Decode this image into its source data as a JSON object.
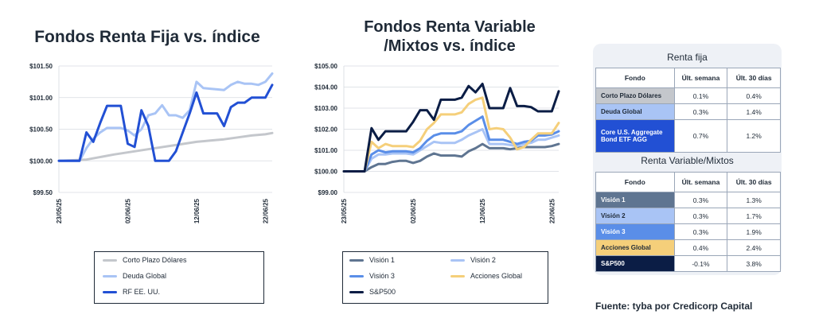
{
  "titles": {
    "left": "Fondos Renta Fija vs. índice",
    "right_line1": "Fondos Renta Variable",
    "right_line2": "/Mixtos vs. índice"
  },
  "colors": {
    "corto_plazo": "#c4c7cc",
    "deuda_global": "#a9c4f5",
    "rf_eeuu": "#2250d4",
    "vision1": "#5f7591",
    "vision2": "#a9c4f5",
    "vision3": "#5a8ee8",
    "acciones_global": "#f5cf7a",
    "sp500": "#0b1d45"
  },
  "chart_data": [
    {
      "type": "line",
      "title": "Fondos Renta Fija vs. índice",
      "ylim": [
        99.5,
        101.5
      ],
      "yticks": [
        "$99.50",
        "$100.00",
        "$100.50",
        "$101.00",
        "$101.50"
      ],
      "xticks": [
        "23/05/25",
        "02/06/25",
        "12/06/25",
        "22/06/25"
      ],
      "x_range": [
        0,
        30
      ],
      "xtick_positions": [
        0,
        10,
        20,
        30
      ],
      "series": [
        {
          "name": "Corto Plazo Dólares",
          "color_key": "corto_plazo",
          "x": [
            0,
            4,
            8,
            11,
            14,
            17,
            20,
            22,
            24,
            26,
            28,
            30,
            31
          ],
          "values": [
            100.0,
            100.02,
            100.1,
            100.15,
            100.2,
            100.25,
            100.3,
            100.32,
            100.34,
            100.37,
            100.4,
            100.42,
            100.44
          ]
        },
        {
          "name": "Deuda Global",
          "color_key": "deuda_global",
          "x": [
            0,
            3,
            4,
            5,
            6,
            7,
            8,
            9,
            10,
            11,
            12,
            13,
            14,
            15,
            16,
            17,
            18,
            19,
            20,
            21,
            22,
            23,
            24,
            25,
            26,
            27,
            28,
            29,
            30,
            31
          ],
          "values": [
            100.0,
            100.0,
            100.2,
            100.35,
            100.45,
            100.52,
            100.52,
            100.52,
            100.48,
            100.4,
            100.5,
            100.72,
            100.75,
            100.88,
            100.72,
            100.72,
            100.68,
            100.8,
            101.25,
            101.15,
            101.14,
            101.13,
            101.12,
            101.2,
            101.25,
            101.22,
            101.22,
            101.2,
            101.25,
            101.38
          ]
        },
        {
          "name": "RF EE. UU.",
          "color_key": "rf_eeuu",
          "x": [
            0,
            3,
            4,
            5,
            6,
            7,
            8,
            9,
            10,
            11,
            12,
            13,
            14,
            15,
            16,
            17,
            18,
            19,
            20,
            21,
            22,
            23,
            24,
            25,
            26,
            27,
            28,
            29,
            30,
            31
          ],
          "values": [
            100.0,
            100.0,
            100.45,
            100.3,
            100.6,
            100.87,
            100.87,
            100.87,
            100.27,
            100.22,
            100.8,
            100.55,
            100.0,
            100.0,
            100.0,
            100.15,
            100.45,
            100.75,
            101.08,
            100.75,
            100.75,
            100.75,
            100.55,
            100.85,
            100.92,
            100.92,
            101.0,
            101.0,
            101.0,
            101.2
          ]
        }
      ]
    },
    {
      "type": "line",
      "title": "Fondos Renta Variable /Mixtos vs. índice",
      "ylim": [
        99.0,
        105.0
      ],
      "yticks": [
        "$99.00",
        "$100.00",
        "$101.00",
        "$102.00",
        "$103.00",
        "$104.00",
        "$105.00"
      ],
      "xticks": [
        "23/05/25",
        "02/06/25",
        "12/06/25",
        "22/06/25"
      ],
      "x_range": [
        0,
        30
      ],
      "xtick_positions": [
        0,
        10,
        20,
        30
      ],
      "series": [
        {
          "name": "Visión 1",
          "color_key": "vision1",
          "x": [
            0,
            3,
            4,
            5,
            6,
            7,
            8,
            9,
            10,
            11,
            12,
            13,
            14,
            15,
            16,
            17,
            18,
            19,
            20,
            21,
            22,
            23,
            24,
            25,
            26,
            27,
            28,
            29,
            30,
            31
          ],
          "values": [
            100.0,
            100.0,
            100.2,
            100.35,
            100.35,
            100.45,
            100.5,
            100.5,
            100.4,
            100.5,
            100.7,
            100.85,
            100.75,
            100.75,
            100.75,
            100.7,
            100.95,
            101.1,
            101.3,
            101.1,
            101.1,
            101.1,
            101.05,
            101.1,
            101.15,
            101.15,
            101.15,
            101.15,
            101.2,
            101.3
          ]
        },
        {
          "name": "Visión 2",
          "color_key": "vision2",
          "x": [
            0,
            3,
            4,
            5,
            6,
            7,
            8,
            9,
            10,
            11,
            12,
            13,
            14,
            15,
            16,
            17,
            18,
            19,
            20,
            21,
            22,
            23,
            24,
            25,
            26,
            27,
            28,
            29,
            30,
            31
          ],
          "values": [
            100.0,
            100.0,
            100.6,
            100.8,
            100.8,
            100.85,
            100.85,
            100.85,
            100.8,
            101.0,
            101.2,
            101.4,
            101.35,
            101.35,
            101.35,
            101.5,
            101.7,
            101.85,
            102.0,
            101.3,
            101.3,
            101.3,
            101.25,
            101.2,
            101.3,
            101.35,
            101.5,
            101.5,
            101.6,
            101.7
          ]
        },
        {
          "name": "Visión 3",
          "color_key": "vision3",
          "x": [
            0,
            3,
            4,
            5,
            6,
            7,
            8,
            9,
            10,
            11,
            12,
            13,
            14,
            15,
            16,
            17,
            18,
            19,
            20,
            21,
            22,
            23,
            24,
            25,
            26,
            27,
            28,
            29,
            30,
            31
          ],
          "values": [
            100.0,
            100.0,
            100.8,
            101.0,
            100.9,
            100.95,
            100.95,
            100.95,
            100.9,
            101.1,
            101.45,
            101.7,
            101.8,
            101.8,
            101.8,
            101.9,
            102.2,
            102.4,
            102.6,
            101.5,
            101.5,
            101.5,
            101.4,
            101.3,
            101.4,
            101.45,
            101.7,
            101.7,
            101.75,
            101.9
          ]
        },
        {
          "name": "Acciones Global",
          "color_key": "acciones_global",
          "x": [
            0,
            3,
            4,
            5,
            6,
            7,
            8,
            9,
            10,
            11,
            12,
            13,
            14,
            15,
            16,
            17,
            18,
            19,
            20,
            21,
            22,
            23,
            24,
            25,
            26,
            27,
            28,
            29,
            30,
            31
          ],
          "values": [
            100.0,
            100.0,
            101.4,
            101.1,
            101.3,
            101.2,
            101.2,
            101.2,
            101.15,
            101.45,
            102.0,
            102.3,
            102.7,
            102.7,
            102.7,
            102.8,
            103.2,
            103.4,
            103.5,
            102.0,
            102.05,
            102.0,
            101.6,
            101.05,
            101.15,
            101.5,
            101.8,
            101.8,
            101.8,
            102.3
          ]
        },
        {
          "name": "S&P500",
          "color_key": "sp500",
          "x": [
            0,
            3,
            4,
            5,
            6,
            7,
            8,
            9,
            10,
            11,
            12,
            13,
            14,
            15,
            16,
            17,
            18,
            19,
            20,
            21,
            22,
            23,
            24,
            25,
            26,
            27,
            28,
            29,
            30,
            31
          ],
          "values": [
            100.0,
            100.0,
            102.05,
            101.5,
            101.9,
            101.9,
            101.9,
            101.9,
            102.35,
            102.9,
            102.9,
            102.45,
            103.4,
            103.4,
            103.4,
            103.5,
            104.05,
            103.75,
            104.15,
            103.0,
            103.0,
            103.0,
            103.95,
            103.1,
            103.1,
            103.05,
            102.85,
            102.85,
            102.85,
            103.8
          ]
        }
      ]
    }
  ],
  "legend_left": [
    "Corto Plazo Dólares",
    "Deuda Global",
    "RF EE. UU."
  ],
  "legend_right": [
    "Visión 1",
    "Visión 2",
    "Visión 3",
    "Acciones Global",
    "S&P500"
  ],
  "table": {
    "fija_title": "Renta fija",
    "variable_title": "Renta Variable/Mixtos",
    "col_fondo": "Fondo",
    "col_semana": "Últ. semana",
    "col_30": "Últ. 30 días",
    "fija_rows": [
      {
        "fund": "Corto Plazo Dólares",
        "semana": "0.1%",
        "d30": "0.4%",
        "bg": "#c4c7cc",
        "fg": "#1f2a37"
      },
      {
        "fund": "Deuda Global",
        "semana": "0.3%",
        "d30": "1.4%",
        "bg": "#a9c4f5",
        "fg": "#1f2a37"
      },
      {
        "fund": "Core U.S. Aggregate Bond ETF AGG",
        "semana": "0.7%",
        "d30": "1.2%",
        "bg": "#2250d4",
        "fg": "#ffffff"
      }
    ],
    "variable_rows": [
      {
        "fund": "Visión 1",
        "semana": "0.3%",
        "d30": "1.3%",
        "bg": "#5f7591",
        "fg": "#ffffff"
      },
      {
        "fund": "Visión 2",
        "semana": "0.3%",
        "d30": "1.7%",
        "bg": "#a9c4f5",
        "fg": "#1f2a37"
      },
      {
        "fund": "Visión 3",
        "semana": "0.3%",
        "d30": "1.9%",
        "bg": "#5a8ee8",
        "fg": "#ffffff"
      },
      {
        "fund": "Acciones Global",
        "semana": "0.4%",
        "d30": "2.4%",
        "bg": "#f5cf7a",
        "fg": "#1f2a37"
      },
      {
        "fund": "S&P500",
        "semana": "-0.1%",
        "d30": "3.8%",
        "bg": "#0b1d45",
        "fg": "#ffffff"
      }
    ]
  },
  "source": "Fuente: tyba por Credicorp Capital"
}
